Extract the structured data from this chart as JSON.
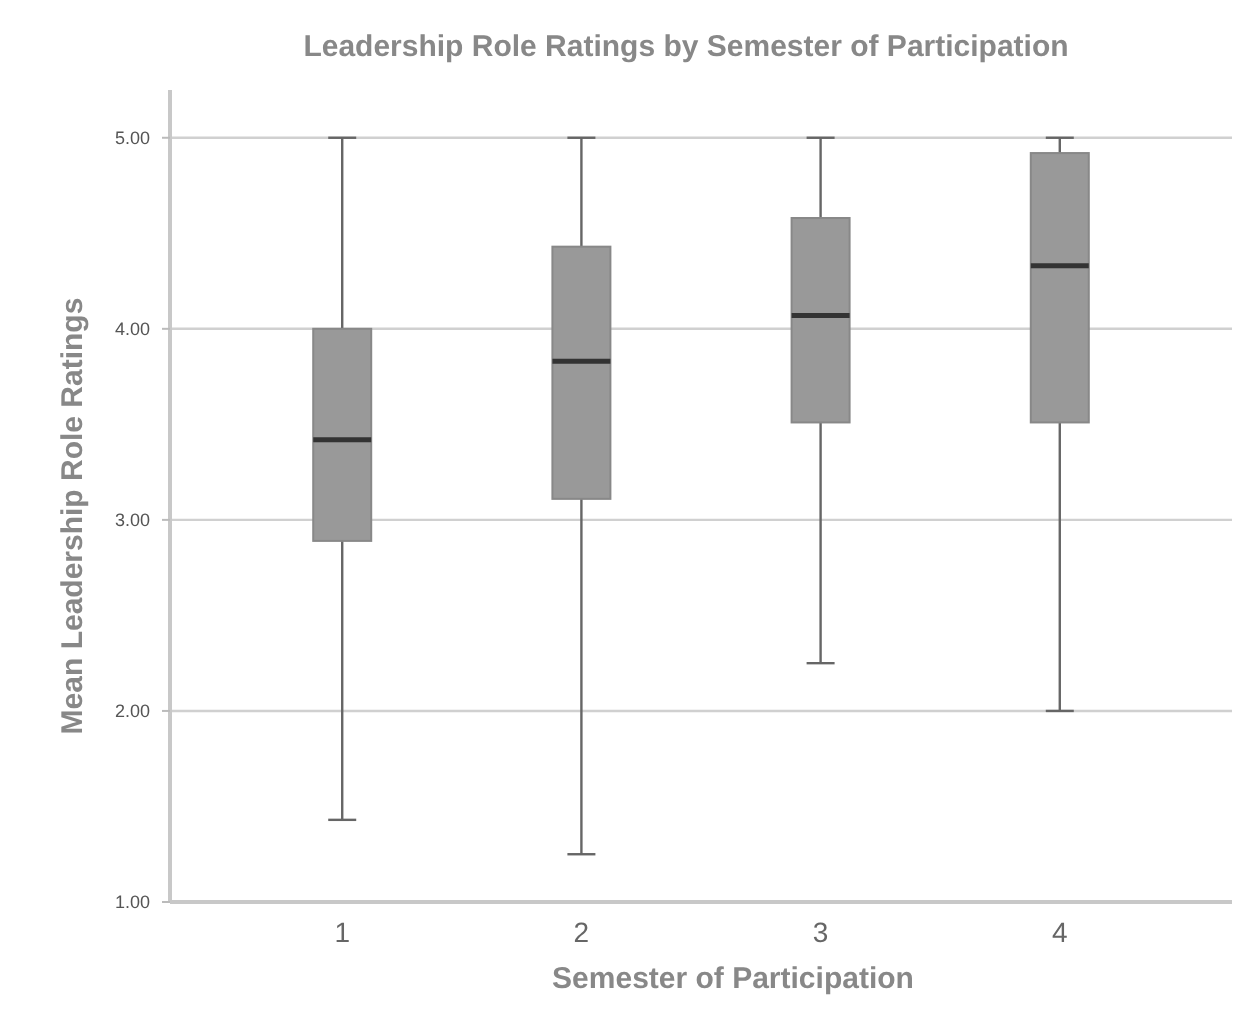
{
  "chart_data": {
    "type": "box",
    "title": "Leadership Role Ratings by Semester of Participation",
    "xlabel": "Semester of Participation",
    "ylabel": "Mean Leadership Role Ratings",
    "categories": [
      "1",
      "2",
      "3",
      "4"
    ],
    "color": "#999999",
    "ylim": [
      1,
      5.25
    ],
    "yticks": [
      {
        "value": 1,
        "label": "1.00"
      },
      {
        "value": 2,
        "label": "2.00"
      },
      {
        "value": 3,
        "label": "3.00"
      },
      {
        "value": 4,
        "label": "4.00"
      },
      {
        "value": 5,
        "label": "5.00"
      }
    ],
    "grid": "y",
    "boxes": [
      {
        "low": 1.43,
        "q1": 2.89,
        "median": 3.42,
        "q3": 4.0,
        "high": 5.0
      },
      {
        "low": 1.25,
        "q1": 3.11,
        "median": 3.83,
        "q3": 4.43,
        "high": 5.0
      },
      {
        "low": 2.25,
        "q1": 3.51,
        "median": 4.07,
        "q3": 4.58,
        "high": 5.0
      },
      {
        "low": 2.0,
        "q1": 3.51,
        "median": 4.33,
        "q3": 4.92,
        "high": 5.0
      }
    ]
  }
}
